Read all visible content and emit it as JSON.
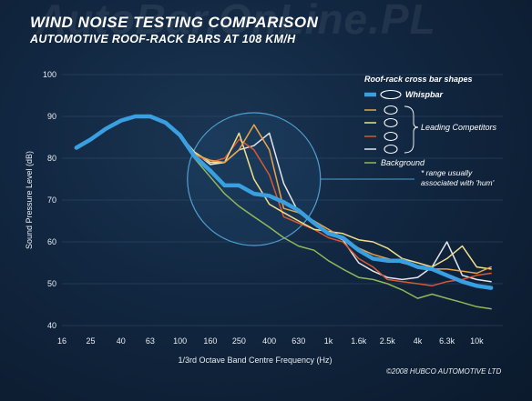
{
  "watermark": "AutoBar.OnLine.PL",
  "copyright": "©2008 HUBCO AUTOMOTIVE LTD",
  "colors": {
    "background": "#10233a",
    "whispbar": "#3a9fe0",
    "grid": "#34506a"
  },
  "chart_data": {
    "type": "line",
    "title": "WIND NOISE TESTING COMPARISON",
    "subtitle": "AUTOMOTIVE ROOF-RACK BARS AT 108 KM/H",
    "xlabel": "1/3rd Octave Band Centre Frequency (Hz)",
    "ylabel": "Sound Pressure Level (dB)",
    "ylim": [
      40,
      100
    ],
    "yticks": [
      40,
      50,
      60,
      70,
      80,
      90,
      100
    ],
    "xscale": "log",
    "x": [
      20,
      25,
      31.5,
      40,
      50,
      63,
      80,
      100,
      125,
      160,
      200,
      250,
      315,
      400,
      500,
      630,
      800,
      1000,
      1250,
      1600,
      2000,
      2500,
      3150,
      4000,
      5000,
      6300,
      8000,
      10000,
      12500
    ],
    "xtick_labels": [
      "16",
      "25",
      "40",
      "63",
      "100",
      "160",
      "250",
      "400",
      "630",
      "1k",
      "1.6k",
      "2.5k",
      "4k",
      "6.3k",
      "10k"
    ],
    "grid": true,
    "legend": {
      "title": "Roof-rack cross bar shapes",
      "placement": "top-right",
      "competitors_label": "Leading Competitors"
    },
    "annotation": {
      "text_lines": [
        "* range usually",
        "associated with 'hum'"
      ],
      "center_x": 315,
      "center_y": 75
    },
    "series": [
      {
        "name": "Whispbar",
        "color": "#3a9fe0",
        "width": 4.5,
        "values": [
          82.5,
          84.5,
          87,
          89,
          90,
          90,
          88.5,
          85.5,
          80.5,
          77,
          73.5,
          73.5,
          71.5,
          71,
          69.5,
          67.5,
          64.5,
          62,
          61,
          58,
          56,
          55.5,
          55.5,
          54,
          53.5,
          52,
          50.5,
          49.5,
          49
        ]
      },
      {
        "name": "",
        "color": "#e9a24a",
        "width": 1.5,
        "values": [
          82.5,
          84.5,
          87,
          89,
          90,
          90,
          88.5,
          85.5,
          81,
          79.5,
          79,
          82,
          88,
          82,
          68,
          67,
          65,
          63,
          61,
          58.5,
          57,
          56,
          55,
          54,
          53.5,
          53.5,
          53,
          52.5,
          54
        ]
      },
      {
        "name": "",
        "color": "#f1df8a",
        "width": 1.5,
        "values": [
          82.5,
          84.5,
          87,
          89,
          90,
          90,
          88.5,
          85.5,
          81.5,
          79,
          79,
          86,
          75,
          69,
          67,
          65,
          63,
          62.5,
          62,
          60.5,
          60,
          58.5,
          56,
          55,
          54,
          56,
          59,
          54,
          53.5
        ]
      },
      {
        "name": "",
        "color": "#d9582f",
        "width": 1.5,
        "values": [
          82.5,
          84.5,
          87,
          89,
          90,
          90,
          88.5,
          85.5,
          81,
          79,
          80,
          84.5,
          82,
          76,
          66,
          64.5,
          63,
          61,
          60,
          56,
          54,
          51,
          50.5,
          50,
          49.5,
          50.5,
          51,
          52,
          52.5
        ]
      },
      {
        "name": "",
        "color": "#e3e6ea",
        "width": 1.5,
        "values": [
          82.5,
          84.5,
          87,
          89,
          90,
          90,
          88.5,
          85.5,
          81.5,
          78.5,
          79,
          82,
          83,
          86,
          74,
          67,
          65,
          62,
          60.5,
          55,
          53,
          51.5,
          51,
          51.5,
          54,
          60,
          52,
          51,
          50.5
        ]
      },
      {
        "name": "Background",
        "color": "#8fb85a",
        "width": 1.5,
        "values": [
          82.5,
          84.5,
          87,
          89,
          90,
          90,
          88.5,
          85.5,
          80,
          75.5,
          71.5,
          68.5,
          66,
          63.5,
          61,
          59,
          58,
          55.5,
          53.5,
          51.5,
          51,
          50,
          48.5,
          46.5,
          47.5,
          46.5,
          45.5,
          44.5,
          44
        ]
      }
    ]
  }
}
